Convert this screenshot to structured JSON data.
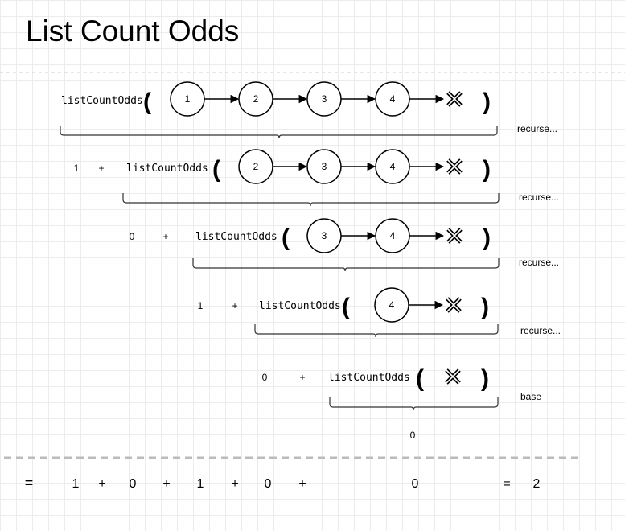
{
  "title": "List Count Odds",
  "function_name": "listCountOdds",
  "plus": "+",
  "equals": "=",
  "null_symbol": "X",
  "rows": [
    {
      "prefix": "",
      "nodes": [
        "1",
        "2",
        "3",
        "4"
      ],
      "brace_label": "recurse..."
    },
    {
      "prefix": "1",
      "nodes": [
        "2",
        "3",
        "4"
      ],
      "brace_label": "recurse..."
    },
    {
      "prefix": "0",
      "nodes": [
        "3",
        "4"
      ],
      "brace_label": "recurse..."
    },
    {
      "prefix": "1",
      "nodes": [
        "4"
      ],
      "brace_label": "recurse..."
    },
    {
      "prefix": "0",
      "nodes": [],
      "brace_label": "base"
    }
  ],
  "base_result": "0",
  "summary": {
    "terms": [
      "1",
      "0",
      "1",
      "0",
      "0"
    ],
    "result": "2"
  }
}
